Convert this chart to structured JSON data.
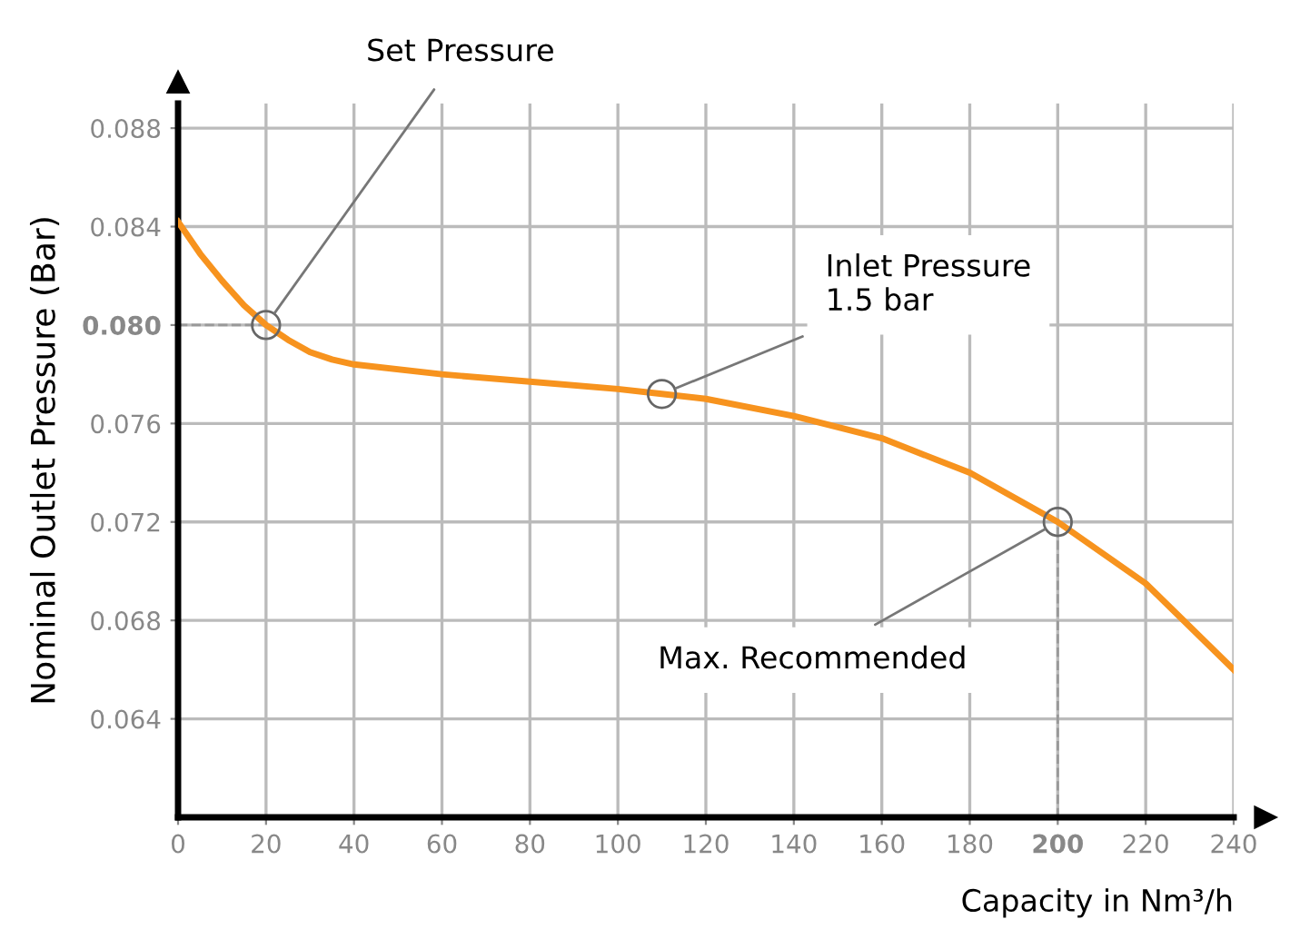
{
  "chart_data": {
    "type": "line",
    "xlabel": "Capacity in Nm³/h",
    "ylabel": "Nominal Outlet Pressure (Bar)",
    "x": [
      0,
      5,
      10,
      15,
      20,
      25,
      30,
      35,
      40,
      60,
      80,
      100,
      110,
      120,
      140,
      160,
      180,
      200,
      220,
      240
    ],
    "series": [
      {
        "color": "#f7931e",
        "values": [
          0.0842,
          0.0829,
          0.0818,
          0.0808,
          0.08,
          0.0794,
          0.0789,
          0.0786,
          0.0784,
          0.078,
          0.0777,
          0.0774,
          0.0772,
          0.077,
          0.0763,
          0.0754,
          0.074,
          0.072,
          0.0695,
          0.066
        ]
      }
    ],
    "xlim": [
      0,
      240
    ],
    "ylim": [
      0.06,
      0.089
    ],
    "xticks": [
      0,
      20,
      40,
      60,
      80,
      100,
      120,
      140,
      160,
      180,
      200,
      220,
      240
    ],
    "yticks": [
      0.064,
      0.068,
      0.072,
      0.076,
      {
        "value": 0.08,
        "label": "0.080"
      },
      0.084,
      0.088
    ],
    "ref_lines": [
      {
        "axis": "y",
        "value": 0.08,
        "line_style": "dashed",
        "color": "#999999"
      },
      {
        "axis": "x",
        "value": 200,
        "line_style": "dashed",
        "color": "#999999"
      }
    ],
    "annotations": [
      {
        "text": "Set Pressure",
        "x": 20,
        "y": 0.08
      },
      {
        "text": "Inlet Pressure\n1.5 bar",
        "x": 110,
        "y": 0.0772
      },
      {
        "text": "Max. Recommended",
        "x": 200,
        "y": 0.072
      }
    ],
    "grid": true,
    "marker": "none",
    "line_style": "solid",
    "legend": false
  }
}
